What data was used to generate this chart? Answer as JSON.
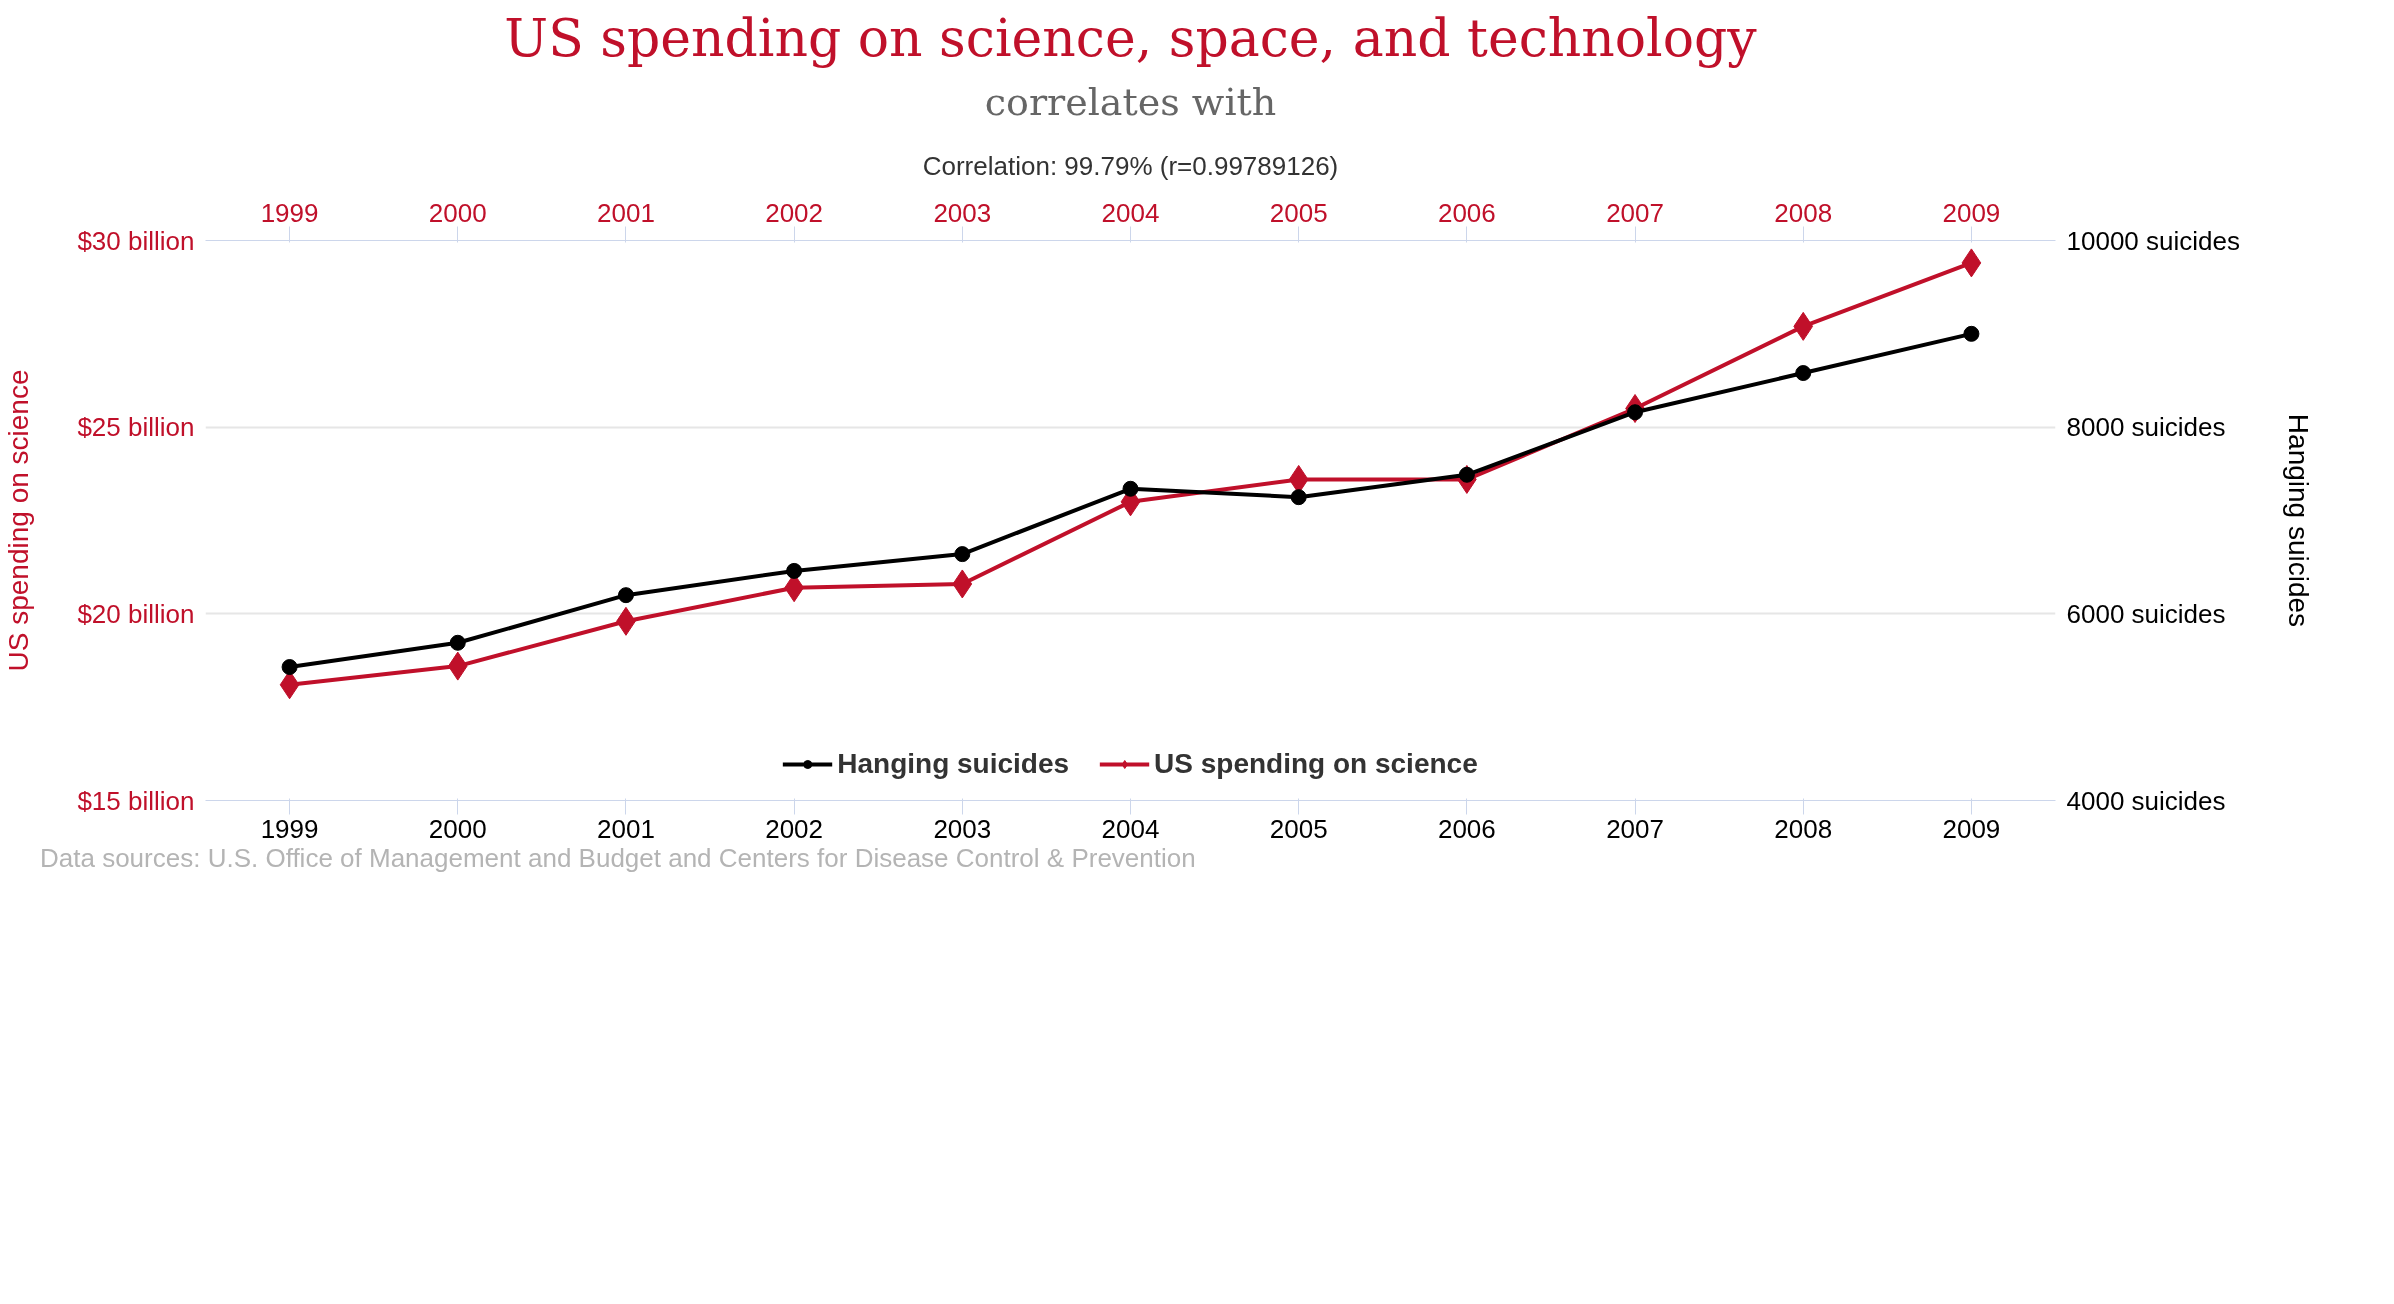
{
  "chart_data": {
    "type": "line",
    "title": "US spending on science, space, and technology",
    "subtitle": "correlates with",
    "annotations": [
      "Correlation: 99.79% (r=0.99789126)",
      "Data sources: U.S. Office of Management and Budget and Centers for Disease Control & Prevention"
    ],
    "x": [
      1999,
      2000,
      2001,
      2002,
      2003,
      2004,
      2005,
      2006,
      2007,
      2008,
      2009
    ],
    "xlim": [
      1998.5,
      2009.5
    ],
    "xticks": [
      1999,
      2000,
      2001,
      2002,
      2003,
      2004,
      2005,
      2006,
      2007,
      2008,
      2009
    ],
    "x2lim": [
      1998.5,
      2009.5
    ],
    "x2ticks": [
      1999,
      2000,
      2001,
      2002,
      2003,
      2004,
      2005,
      2006,
      2007,
      2008,
      2009
    ],
    "ylabel": "US spending on science",
    "y2label": "Hanging suicides",
    "ylim": [
      15,
      30
    ],
    "yticks": [
      {
        "value": 15,
        "label": "$15 billion"
      },
      {
        "value": 20,
        "label": "$20 billion"
      },
      {
        "value": 25,
        "label": "$25 billion"
      },
      {
        "value": 30,
        "label": "$30 billion"
      }
    ],
    "y2lim": [
      4000,
      10000
    ],
    "y2ticks": [
      {
        "value": 4000,
        "label": "4000 suicides"
      },
      {
        "value": 6000,
        "label": "6000 suicides"
      },
      {
        "value": 8000,
        "label": "8000 suicides"
      },
      {
        "value": 10000,
        "label": "10000 suicides"
      }
    ],
    "series": [
      {
        "name": "Hanging suicides",
        "color": "#000000",
        "axis": "y2",
        "marker": "circle",
        "values": [
          5430,
          5690,
          6200,
          6460,
          6640,
          7340,
          7250,
          7490,
          8160,
          8580,
          9000
        ]
      },
      {
        "name": "US spending on science",
        "color": "#c0102a",
        "axis": "y",
        "marker": "diamond",
        "values": [
          18.1,
          18.6,
          19.8,
          20.7,
          20.8,
          23.0,
          23.6,
          23.6,
          25.5,
          27.7,
          29.4
        ]
      }
    ],
    "grid": "y",
    "legend": "bottom",
    "line_style": "solid"
  }
}
